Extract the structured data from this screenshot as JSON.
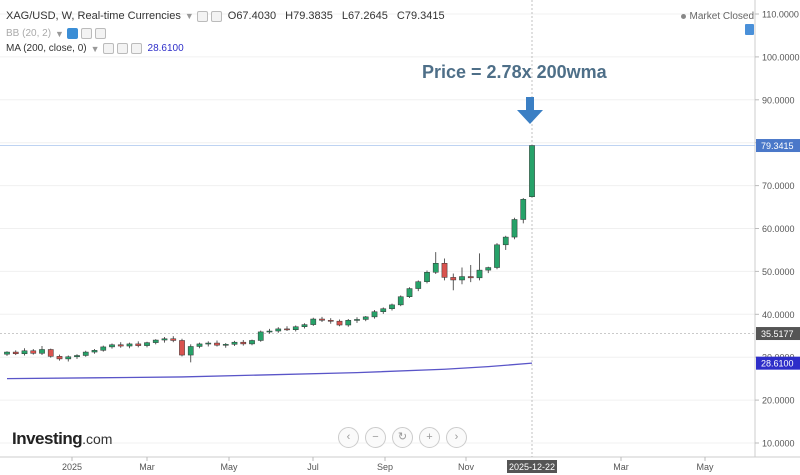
{
  "header": {
    "symbol_line": "XAG/USD, W, Real-time Currencies",
    "open_label": "O",
    "open": "67.4030",
    "high_label": "H",
    "high": "79.3835",
    "low_label": "L",
    "low": "67.2645",
    "close_label": "C",
    "close": "79.3415",
    "bb_label": "BB (20, 2)",
    "ma_label": "MA (200, close, 0)",
    "ma_value": "28.6100",
    "market_status": "Market Closed"
  },
  "annotation": "Price = 2.78x 200wma",
  "logo": {
    "main": "Investing",
    "suffix": ".com"
  },
  "nav_buttons": [
    "‹",
    "−",
    "↻",
    "+",
    "›"
  ],
  "colors": {
    "up": "#26a269",
    "down": "#d9534f",
    "ma": "#5a55c8",
    "price_tag": "#4a78c9",
    "ma_tag": "#2e2ec9",
    "crosshair_tag": "#555555",
    "arrow": "#3b7fc4"
  },
  "chart_data": {
    "type": "candlestick",
    "title": "XAG/USD, W, Real-time Currencies",
    "y_axis": {
      "ticks": [
        "110.0000",
        "100.0000",
        "90.0000",
        "80.0000",
        "70.0000",
        "60.0000",
        "50.0000",
        "40.0000",
        "30.0000",
        "20.0000",
        "10.0000"
      ],
      "tick_values": [
        110,
        100,
        90,
        80,
        70,
        60,
        50,
        40,
        30,
        20,
        10
      ],
      "range": [
        8,
        116
      ]
    },
    "x_axis": {
      "labels": [
        "2025",
        "Mar",
        "May",
        "Jul",
        "Sep",
        "Nov",
        "Mar",
        "May"
      ],
      "highlight_label": "2025-12-22"
    },
    "price_tags": [
      {
        "label": "79.3415",
        "value": 79.3415
      },
      {
        "label": "35.5177",
        "value": 35.5177
      },
      {
        "label": "28.6100",
        "value": 28.61
      }
    ],
    "candles": [
      [
        30.7,
        31.4,
        30.3,
        31.2
      ],
      [
        31.2,
        31.6,
        30.5,
        30.8
      ],
      [
        30.8,
        32.1,
        30.4,
        31.5
      ],
      [
        31.5,
        31.9,
        30.6,
        30.9
      ],
      [
        30.9,
        32.6,
        30.5,
        31.8
      ],
      [
        31.8,
        32.0,
        29.9,
        30.2
      ],
      [
        30.2,
        30.6,
        29.2,
        29.6
      ],
      [
        29.6,
        30.4,
        29.0,
        30.1
      ],
      [
        30.1,
        30.7,
        29.6,
        30.4
      ],
      [
        30.4,
        31.5,
        30.1,
        31.2
      ],
      [
        31.2,
        31.9,
        30.8,
        31.6
      ],
      [
        31.6,
        32.7,
        31.3,
        32.4
      ],
      [
        32.4,
        33.2,
        32.0,
        32.9
      ],
      [
        32.9,
        33.5,
        32.2,
        32.6
      ],
      [
        32.6,
        33.4,
        32.1,
        33.1
      ],
      [
        33.1,
        33.7,
        32.3,
        32.7
      ],
      [
        32.7,
        33.6,
        32.3,
        33.4
      ],
      [
        33.4,
        34.2,
        33.0,
        34.0
      ],
      [
        34.0,
        34.7,
        33.4,
        34.3
      ],
      [
        34.3,
        34.9,
        33.5,
        33.9
      ],
      [
        33.9,
        34.3,
        30.2,
        30.5
      ],
      [
        30.5,
        33.0,
        28.8,
        32.5
      ],
      [
        32.5,
        33.4,
        32.1,
        33.1
      ],
      [
        33.1,
        33.7,
        32.5,
        33.3
      ],
      [
        33.3,
        33.9,
        32.5,
        32.8
      ],
      [
        32.8,
        33.3,
        32.2,
        33.0
      ],
      [
        33.0,
        33.8,
        32.6,
        33.5
      ],
      [
        33.5,
        34.0,
        32.7,
        33.1
      ],
      [
        33.1,
        34.1,
        32.8,
        33.9
      ],
      [
        33.9,
        36.2,
        33.6,
        35.9
      ],
      [
        35.9,
        36.6,
        35.5,
        36.1
      ],
      [
        36.1,
        37.0,
        35.7,
        36.6
      ],
      [
        36.6,
        37.2,
        36.1,
        36.4
      ],
      [
        36.4,
        37.4,
        36.0,
        37.1
      ],
      [
        37.1,
        37.9,
        36.7,
        37.6
      ],
      [
        37.6,
        39.2,
        37.3,
        38.9
      ],
      [
        38.9,
        39.4,
        38.2,
        38.6
      ],
      [
        38.6,
        39.1,
        37.8,
        38.4
      ],
      [
        38.4,
        38.8,
        37.2,
        37.5
      ],
      [
        37.5,
        38.9,
        37.1,
        38.6
      ],
      [
        38.6,
        39.3,
        38.0,
        38.8
      ],
      [
        38.8,
        39.6,
        38.4,
        39.4
      ],
      [
        39.4,
        41.0,
        39.0,
        40.6
      ],
      [
        40.6,
        41.6,
        40.1,
        41.3
      ],
      [
        41.3,
        42.5,
        40.9,
        42.2
      ],
      [
        42.2,
        44.4,
        41.9,
        44.1
      ],
      [
        44.1,
        46.3,
        43.8,
        46.0
      ],
      [
        46.0,
        47.9,
        45.4,
        47.6
      ],
      [
        47.6,
        50.2,
        47.2,
        49.8
      ],
      [
        49.8,
        54.5,
        49.4,
        51.9
      ],
      [
        51.9,
        53.0,
        47.9,
        48.6
      ],
      [
        48.6,
        49.5,
        45.6,
        48.0
      ],
      [
        48.0,
        50.9,
        47.0,
        48.8
      ],
      [
        48.8,
        51.5,
        47.5,
        48.5
      ],
      [
        48.5,
        54.2,
        47.9,
        50.3
      ],
      [
        50.3,
        51.1,
        49.6,
        50.9
      ],
      [
        50.9,
        56.6,
        50.5,
        56.2
      ],
      [
        56.2,
        58.3,
        55.0,
        58.0
      ],
      [
        58.0,
        62.5,
        57.5,
        62.1
      ],
      [
        62.1,
        67.1,
        61.2,
        66.8
      ],
      [
        67.4,
        79.38,
        67.26,
        79.34
      ]
    ],
    "ma200": [
      [
        0,
        25.0
      ],
      [
        10,
        25.2
      ],
      [
        20,
        25.4
      ],
      [
        30,
        25.9
      ],
      [
        40,
        26.4
      ],
      [
        50,
        27.2
      ],
      [
        55,
        27.8
      ],
      [
        60,
        28.61
      ]
    ]
  }
}
